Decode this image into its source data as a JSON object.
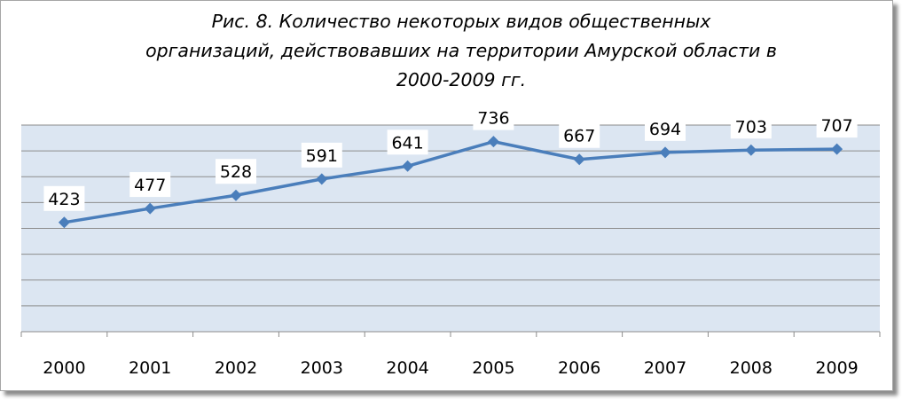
{
  "chart_data": {
    "type": "line",
    "title_lines": [
      "Рис. 8. Количество некоторых видов общественных",
      "организаций, действовавших на территории Амурской области в",
      "2000-2009 гг."
    ],
    "categories": [
      "2000",
      "2001",
      "2002",
      "2003",
      "2004",
      "2005",
      "2006",
      "2007",
      "2008",
      "2009"
    ],
    "series": [
      {
        "values": [
          423,
          477,
          528,
          591,
          641,
          736,
          667,
          694,
          703,
          707
        ]
      }
    ],
    "ylim": [
      0,
      800
    ],
    "grid": true,
    "y_axis_labels": false,
    "data_labels": true,
    "colors": {
      "line": "#4a7ebb",
      "plot_bg": "#dce6f2",
      "grid": "#8c8c8c"
    }
  }
}
